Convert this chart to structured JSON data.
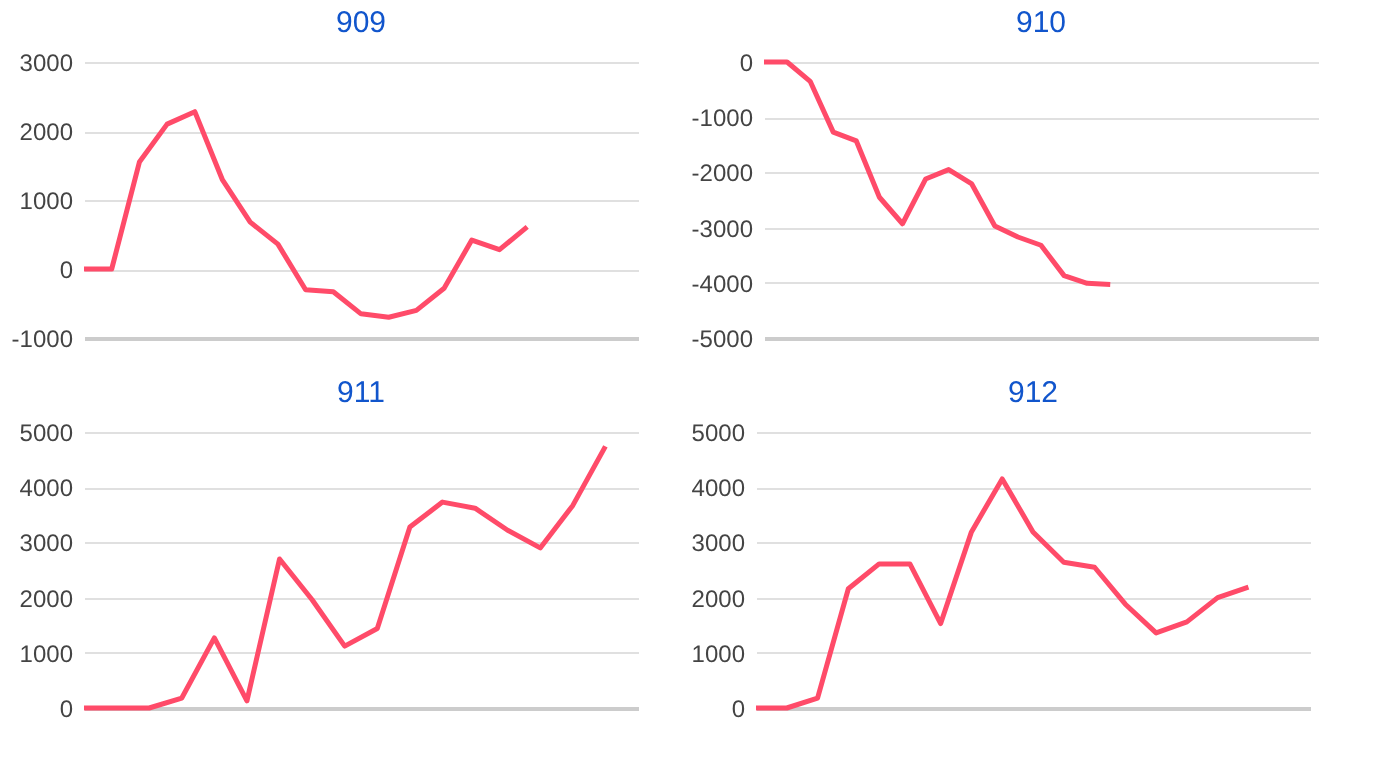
{
  "chart_data": [
    {
      "type": "line",
      "title": "909",
      "categories": [
        null,
        null,
        null,
        null,
        null,
        null,
        null,
        null,
        null,
        null,
        null,
        null,
        null,
        null,
        null,
        null,
        null,
        null,
        null,
        null,
        null
      ],
      "color": "#ff4b69",
      "ylim": [
        -1000,
        3000
      ],
      "yticks": [
        -1000,
        0,
        1000,
        2000,
        3000
      ],
      "grid": "y",
      "tick_labels": "y",
      "values": [
        0,
        0,
        1550,
        2100,
        2280,
        1290,
        680,
        360,
        -300,
        -330,
        -650,
        -700,
        -600,
        -280,
        420,
        280,
        610,
        null,
        null,
        null,
        null
      ]
    },
    {
      "type": "line",
      "title": "910",
      "categories": [
        null,
        null,
        null,
        null,
        null,
        null,
        null,
        null,
        null,
        null,
        null,
        null,
        null,
        null,
        null,
        null,
        null,
        null,
        null,
        null,
        null,
        null,
        null,
        null,
        null
      ],
      "color": "#ff4b69",
      "ylim": [
        -5000,
        0
      ],
      "yticks": [
        -5000,
        -4000,
        -3000,
        -2000,
        -1000,
        0
      ],
      "grid": "y",
      "tick_labels": "y",
      "values": [
        0,
        0,
        -350,
        -1270,
        -1430,
        -2450,
        -2930,
        -2120,
        -1950,
        -2210,
        -2970,
        -3170,
        -3320,
        -3870,
        -4010,
        -4030,
        null,
        null,
        null,
        null,
        null,
        null,
        null,
        null,
        null
      ]
    },
    {
      "type": "line",
      "title": "911",
      "categories": [
        null,
        null,
        null,
        null,
        null,
        null,
        null,
        null,
        null,
        null,
        null,
        null,
        null,
        null,
        null,
        null,
        null,
        null
      ],
      "color": "#ff4b69",
      "ylim": [
        0,
        5000
      ],
      "yticks": [
        0,
        1000,
        2000,
        3000,
        4000,
        5000
      ],
      "grid": "y",
      "tick_labels": "y",
      "values": [
        0,
        0,
        0,
        180,
        1270,
        130,
        2700,
        1960,
        1120,
        1440,
        3280,
        3730,
        3620,
        3220,
        2900,
        3670,
        4740,
        null
      ]
    },
    {
      "type": "line",
      "title": "912",
      "categories": [
        null,
        null,
        null,
        null,
        null,
        null,
        null,
        null,
        null,
        null,
        null,
        null,
        null,
        null,
        null,
        null,
        null,
        null,
        null
      ],
      "color": "#ff4b69",
      "ylim": [
        0,
        5000
      ],
      "yticks": [
        0,
        1000,
        2000,
        3000,
        4000,
        5000
      ],
      "grid": "y",
      "tick_labels": "y",
      "values": [
        0,
        0,
        180,
        2160,
        2610,
        2610,
        1530,
        3190,
        4150,
        3190,
        2640,
        2550,
        1880,
        1360,
        1560,
        2000,
        2190,
        null,
        null
      ]
    }
  ]
}
